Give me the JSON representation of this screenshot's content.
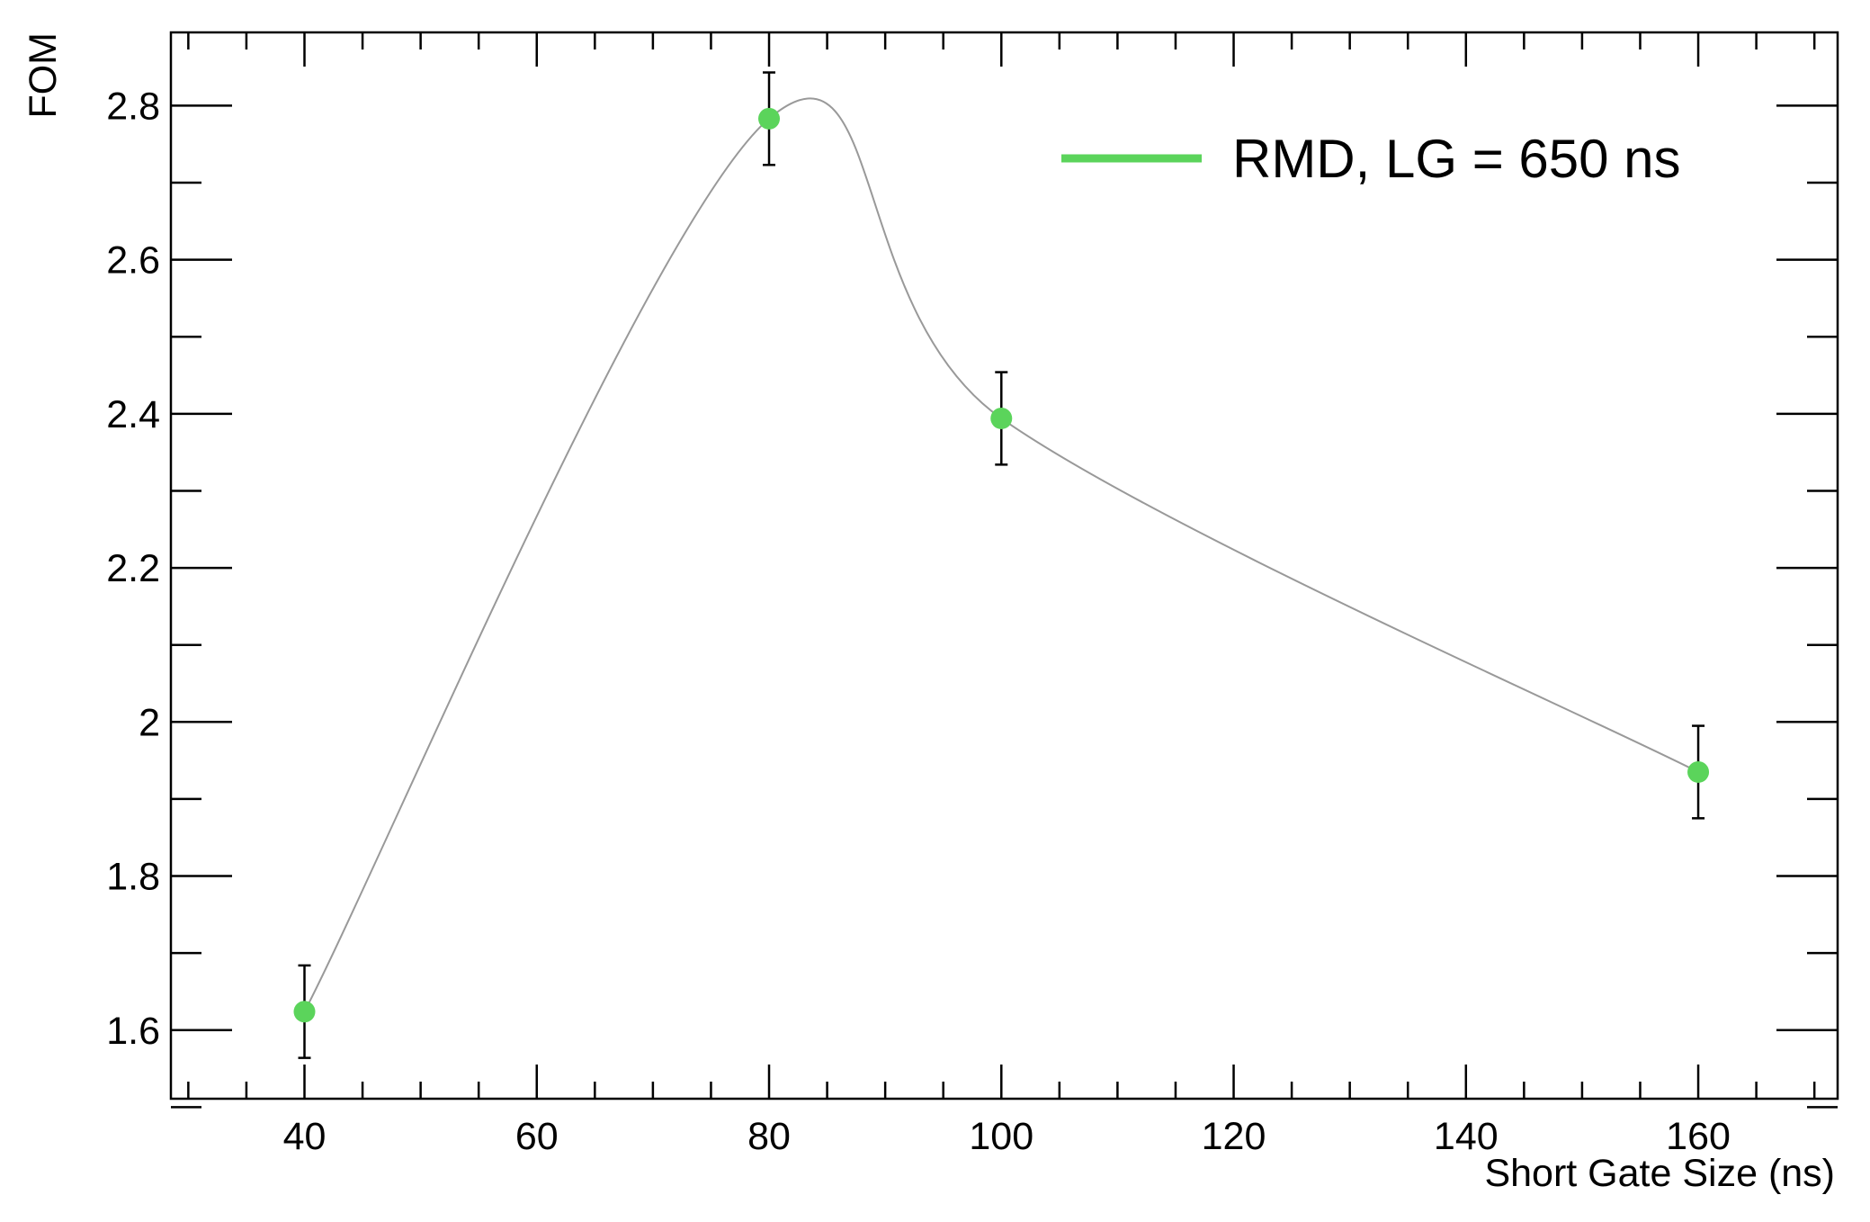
{
  "chart_data": {
    "type": "scatter",
    "title": "",
    "xlabel": "Short Gate Size (ns)",
    "ylabel": "FOM",
    "xlim": [
      28.5,
      172
    ],
    "ylim": [
      1.511,
      2.895
    ],
    "x_ticks": [
      40,
      60,
      80,
      100,
      120,
      140,
      160
    ],
    "x_tick_labels": [
      "40",
      "60",
      "80",
      "100",
      "120",
      "140",
      "160"
    ],
    "y_ticks": [
      1.6,
      1.8,
      2.0,
      2.2,
      2.4,
      2.6,
      2.8
    ],
    "y_tick_labels": [
      "1.6",
      "1.8",
      "2",
      "2.2",
      "2.4",
      "2.6",
      "2.8"
    ],
    "grid": false,
    "legend_position": "top-right",
    "series": [
      {
        "name": "RMD, LG = 650 ns",
        "color": "#5bd45b",
        "x": [
          40,
          80,
          100,
          160
        ],
        "y": [
          1.624,
          2.783,
          2.394,
          1.935
        ],
        "y_err": [
          0.06,
          0.06,
          0.06,
          0.06
        ]
      }
    ],
    "curve_color": "#999999",
    "error_bar_color": "#000000"
  }
}
